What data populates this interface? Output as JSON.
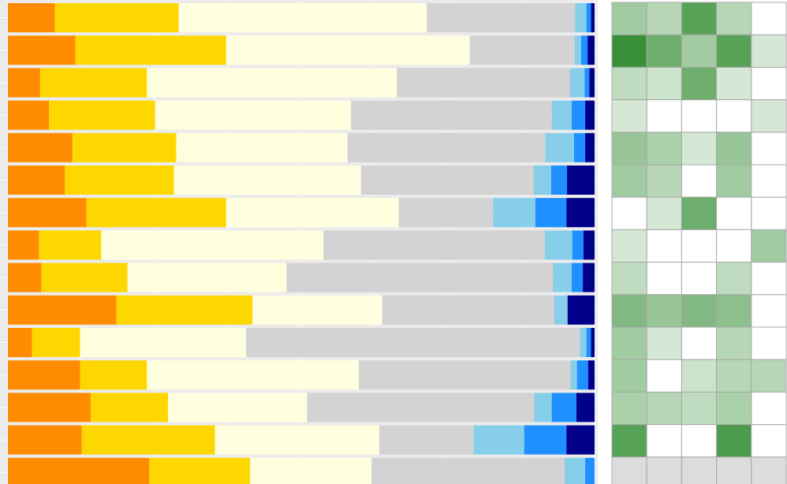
{
  "chart_data": [
    {
      "type": "bar",
      "orientation": "horizontal",
      "stacked": true,
      "normalized": true,
      "xlim": [
        0,
        1
      ],
      "grid": true,
      "legend": "none",
      "title": "",
      "xlabel": "",
      "ylabel": "",
      "series": [
        {
          "color": "#FF8C00",
          "values": [
            0.08,
            0.115,
            0.055,
            0.07,
            0.11,
            0.097,
            0.134,
            0.053,
            0.057,
            0.185,
            0.041,
            0.123,
            0.141,
            0.126,
            0.241
          ]
        },
        {
          "color": "#FFD700",
          "values": [
            0.211,
            0.257,
            0.182,
            0.181,
            0.177,
            0.186,
            0.238,
            0.106,
            0.147,
            0.232,
            0.082,
            0.114,
            0.132,
            0.227,
            0.172
          ]
        },
        {
          "color": "#FFFFE0",
          "values": [
            0.423,
            0.415,
            0.426,
            0.334,
            0.292,
            0.319,
            0.294,
            0.379,
            0.271,
            0.221,
            0.283,
            0.361,
            0.237,
            0.28,
            0.207
          ]
        },
        {
          "color": "#D3D3D3",
          "values": [
            0.253,
            0.179,
            0.295,
            0.342,
            0.337,
            0.294,
            0.161,
            0.377,
            0.454,
            0.293,
            0.569,
            0.361,
            0.387,
            0.161,
            0.329
          ]
        },
        {
          "color": "#87CEEB",
          "values": [
            0.019,
            0.011,
            0.025,
            0.034,
            0.049,
            0.03,
            0.072,
            0.047,
            0.032,
            0.023,
            0.011,
            0.011,
            0.03,
            0.086,
            0.035
          ]
        },
        {
          "color": "#1E90FF",
          "values": [
            0.008,
            0.011,
            0.008,
            0.023,
            0.019,
            0.027,
            0.053,
            0.019,
            0.019,
            0.0,
            0.008,
            0.019,
            0.042,
            0.072,
            0.016
          ]
        },
        {
          "color": "#00008B",
          "values": [
            0.006,
            0.012,
            0.009,
            0.016,
            0.016,
            0.047,
            0.048,
            0.019,
            0.02,
            0.046,
            0.006,
            0.011,
            0.031,
            0.048,
            0.0
          ]
        }
      ]
    },
    {
      "type": "heatmap",
      "colorscale": [
        "#FFFFFF",
        "#2E8B2E"
      ],
      "values": [
        [
          0.45,
          0.35,
          0.8,
          0.35,
          0.0
        ],
        [
          0.95,
          0.7,
          0.45,
          0.8,
          0.2
        ],
        [
          0.3,
          0.25,
          0.7,
          0.2,
          0.0
        ],
        [
          0.2,
          0.0,
          0.0,
          0.0,
          0.2
        ],
        [
          0.5,
          0.4,
          0.2,
          0.5,
          0.0
        ],
        [
          0.45,
          0.35,
          0.0,
          0.45,
          0.0
        ],
        [
          0.0,
          0.2,
          0.7,
          0.0,
          0.0
        ],
        [
          0.2,
          0.0,
          0.0,
          0.0,
          0.45
        ],
        [
          0.3,
          0.0,
          0.0,
          0.3,
          0.0
        ],
        [
          0.6,
          0.5,
          0.6,
          0.55,
          0.0
        ],
        [
          0.45,
          0.2,
          0.0,
          0.35,
          0.0
        ],
        [
          0.45,
          0.0,
          0.25,
          0.35,
          0.35
        ],
        [
          0.4,
          0.35,
          0.3,
          0.4,
          0.0
        ],
        [
          0.8,
          0.0,
          0.0,
          0.85,
          0.0
        ],
        [
          null,
          null,
          null,
          null,
          null
        ]
      ]
    }
  ]
}
